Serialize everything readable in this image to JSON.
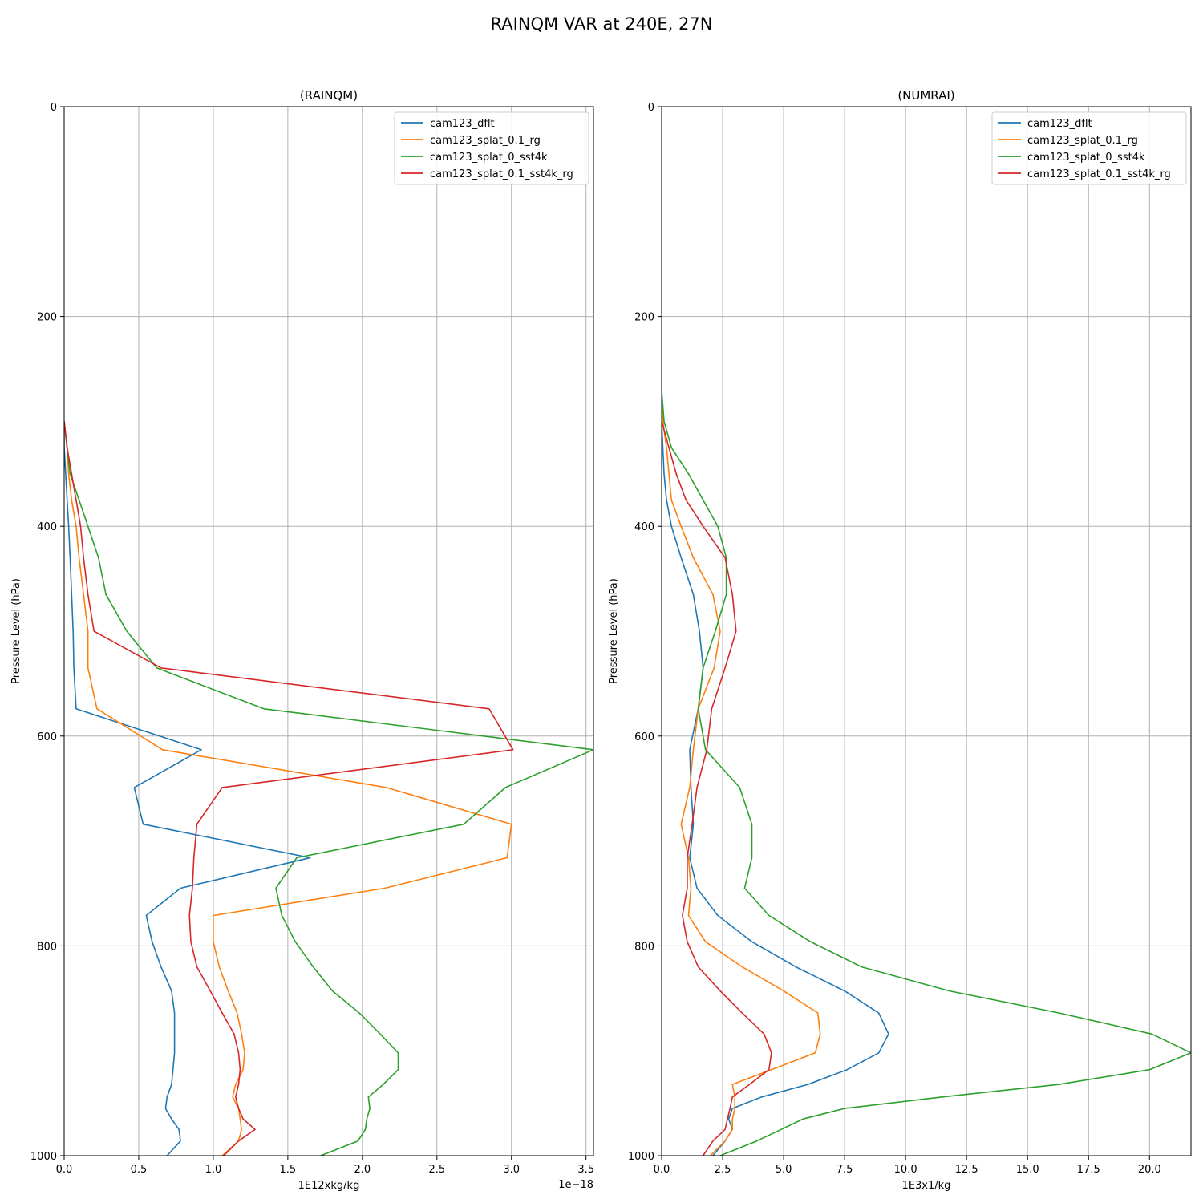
{
  "figure": {
    "suptitle": "RAINQM VAR at 240E, 27N"
  },
  "chart_data": [
    {
      "type": "line",
      "title": "(RAINQM)",
      "xlabel": "1E12xkg/kg",
      "ylabel": "Pressure Level (hPa)",
      "x_offset_text": "1e−18",
      "xlim": [
        0,
        3.55
      ],
      "ylim": [
        1000,
        0
      ],
      "y_inverted": true,
      "grid": true,
      "legend_position": "upper right",
      "x_ticks": [
        0,
        0.5,
        1.0,
        1.5,
        2.0,
        2.5,
        3.0,
        3.5
      ],
      "x_tick_labels": [
        "0.0",
        "0.5",
        "1.0",
        "1.5",
        "2.0",
        "2.5",
        "3.0",
        "3.5"
      ],
      "y_ticks": [
        0,
        200,
        400,
        600,
        800,
        1000
      ],
      "y_tick_labels": [
        "0",
        "200",
        "400",
        "600",
        "800",
        "1000"
      ],
      "pressure_levels": [
        300,
        325,
        350,
        375,
        400,
        430,
        465,
        500,
        535,
        574,
        613,
        649,
        684,
        716,
        745,
        771,
        796,
        820,
        843,
        864,
        884,
        902,
        918,
        932,
        944,
        955,
        965,
        975,
        986,
        1000
      ],
      "series": [
        {
          "name": "cam123_dflt",
          "color": "#1f77b4",
          "values": [
            0.0,
            0.0,
            0.01,
            0.02,
            0.03,
            0.04,
            0.05,
            0.06,
            0.065,
            0.08,
            0.92,
            0.47,
            0.53,
            1.65,
            0.78,
            0.55,
            0.59,
            0.65,
            0.72,
            0.74,
            0.74,
            0.74,
            0.73,
            0.72,
            0.69,
            0.68,
            0.72,
            0.77,
            0.78,
            0.69
          ]
        },
        {
          "name": "cam123_splat_0.1_rg",
          "color": "#ff7f0e",
          "values": [
            0.0,
            0.02,
            0.03,
            0.05,
            0.08,
            0.1,
            0.13,
            0.16,
            0.16,
            0.22,
            0.66,
            2.16,
            3.0,
            2.97,
            2.15,
            1.0,
            1.0,
            1.04,
            1.1,
            1.16,
            1.19,
            1.21,
            1.2,
            1.15,
            1.13,
            1.17,
            1.18,
            1.19,
            1.17,
            1.06
          ]
        },
        {
          "name": "cam123_splat_0_sst4k",
          "color": "#2ca02c",
          "values": [
            0.0,
            0.02,
            0.04,
            0.1,
            0.16,
            0.23,
            0.28,
            0.42,
            0.62,
            1.34,
            3.55,
            2.96,
            2.68,
            1.56,
            1.42,
            1.46,
            1.55,
            1.67,
            1.8,
            1.98,
            2.12,
            2.24,
            2.24,
            2.14,
            2.04,
            2.05,
            2.03,
            2.02,
            1.97,
            1.72
          ]
        },
        {
          "name": "cam123_splat_0.1_sst4k_rg",
          "color": "#d62728",
          "values": [
            0.0,
            0.02,
            0.05,
            0.08,
            0.11,
            0.13,
            0.16,
            0.2,
            0.65,
            2.85,
            3.01,
            1.06,
            0.89,
            0.87,
            0.86,
            0.84,
            0.85,
            0.89,
            0.98,
            1.06,
            1.14,
            1.17,
            1.18,
            1.17,
            1.15,
            1.17,
            1.2,
            1.28,
            1.17,
            1.07
          ]
        }
      ]
    },
    {
      "type": "line",
      "title": "(NUMRAI)",
      "xlabel": "1E3x1/kg",
      "ylabel": "Pressure Level (hPa)",
      "xlim": [
        0,
        21.7
      ],
      "ylim": [
        1000,
        0
      ],
      "y_inverted": true,
      "grid": true,
      "legend_position": "upper right",
      "x_ticks": [
        0,
        2.5,
        5.0,
        7.5,
        10.0,
        12.5,
        15.0,
        17.5,
        20.0
      ],
      "x_tick_labels": [
        "0.0",
        "2.5",
        "5.0",
        "7.5",
        "10.0",
        "12.5",
        "15.0",
        "17.5",
        "20.0"
      ],
      "y_ticks": [
        0,
        200,
        400,
        600,
        800,
        1000
      ],
      "y_tick_labels": [
        "0",
        "200",
        "400",
        "600",
        "800",
        "1000"
      ],
      "pressure_levels": [
        270,
        300,
        325,
        350,
        375,
        400,
        430,
        465,
        500,
        535,
        574,
        613,
        649,
        684,
        716,
        745,
        771,
        796,
        820,
        843,
        864,
        884,
        902,
        918,
        932,
        944,
        955,
        965,
        975,
        986,
        1000
      ],
      "series": [
        {
          "name": "cam123_dflt",
          "color": "#1f77b4",
          "values": [
            0.0,
            0.0,
            0.05,
            0.1,
            0.2,
            0.4,
            0.8,
            1.3,
            1.55,
            1.7,
            1.5,
            1.15,
            1.2,
            1.3,
            1.15,
            1.45,
            2.3,
            3.7,
            5.5,
            7.5,
            8.9,
            9.3,
            8.9,
            7.6,
            6.0,
            4.1,
            2.9,
            2.75,
            2.9,
            2.6,
            2.1
          ]
        },
        {
          "name": "cam123_splat_0.1_rg",
          "color": "#ff7f0e",
          "values": [
            0.0,
            0.05,
            0.2,
            0.3,
            0.4,
            0.8,
            1.3,
            2.1,
            2.4,
            2.15,
            1.5,
            1.3,
            1.15,
            0.8,
            1.1,
            1.2,
            1.1,
            1.8,
            3.3,
            5.0,
            6.4,
            6.5,
            6.3,
            4.5,
            2.9,
            3.0,
            3.0,
            2.9,
            2.9,
            2.6,
            2.0
          ]
        },
        {
          "name": "cam123_splat_0_sst4k",
          "color": "#2ca02c",
          "values": [
            0.0,
            0.1,
            0.4,
            1.1,
            1.7,
            2.3,
            2.65,
            2.65,
            2.2,
            1.7,
            1.5,
            1.8,
            3.2,
            3.7,
            3.7,
            3.4,
            4.4,
            6.1,
            8.2,
            11.8,
            16.3,
            20.1,
            21.7,
            20.0,
            16.3,
            11.5,
            7.5,
            5.8,
            4.9,
            3.9,
            2.4
          ]
        },
        {
          "name": "cam123_splat_0.1_sst4k_rg",
          "color": "#d62728",
          "values": [
            0.0,
            0.0,
            0.3,
            0.6,
            1.0,
            1.7,
            2.6,
            2.9,
            3.05,
            2.6,
            2.05,
            1.85,
            1.45,
            1.25,
            1.05,
            1.05,
            0.85,
            1.05,
            1.5,
            2.4,
            3.3,
            4.2,
            4.5,
            4.4,
            3.6,
            2.9,
            2.8,
            2.7,
            2.6,
            2.1,
            1.7
          ]
        }
      ]
    }
  ]
}
